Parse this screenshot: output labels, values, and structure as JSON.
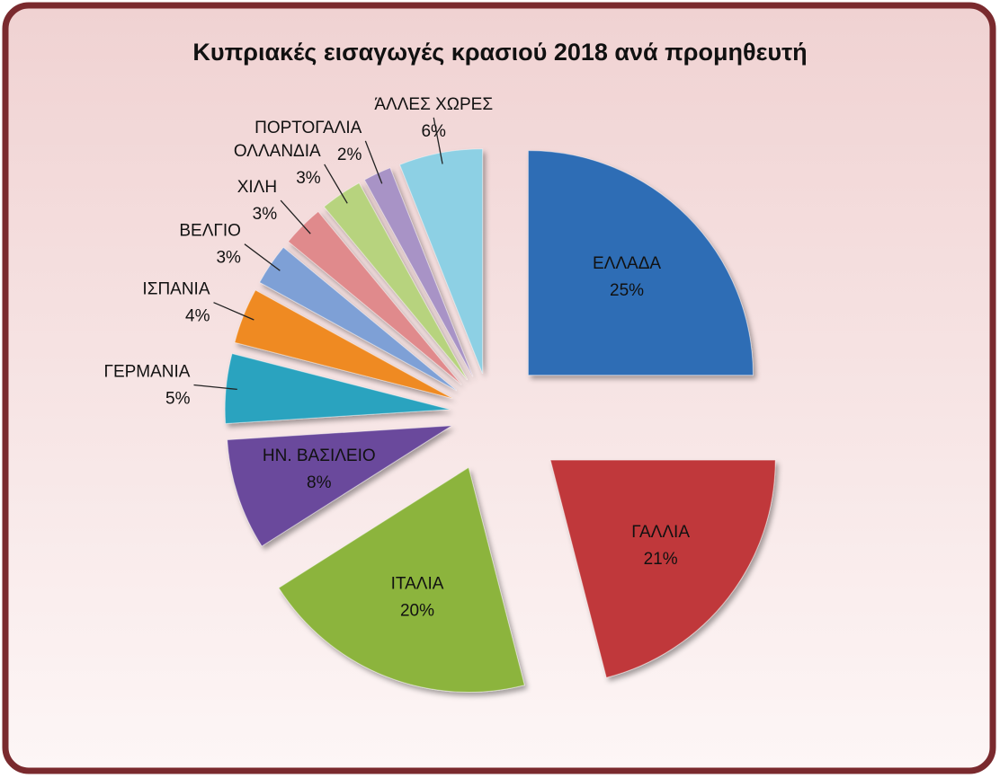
{
  "chart_data": {
    "type": "pie",
    "title": "Κυπριακές εισαγωγές κρασιού 2018 ανά προμηθευτή",
    "categories": [
      "ΕΛΛΑΔΑ",
      "ΓΑΛΛΙΑ",
      "ΙΤΑΛΙΑ",
      "ΗΝ. ΒΑΣΙΛΕΙΟ",
      "ΓΕΡΜΑΝΙΑ",
      "ΙΣΠΑΝΙΑ",
      "ΒΕΛΓΙΟ",
      "ΧΙΛΗ",
      "ΟΛΛΑΝΔΙΑ",
      "ΠΟΡΤΟΓΑΛΙΑ",
      "ΆΛΛΕΣ ΧΩΡΕΣ"
    ],
    "values": [
      25,
      21,
      20,
      8,
      5,
      4,
      3,
      3,
      3,
      2,
      6
    ],
    "value_labels": [
      "25%",
      "21%",
      "20%",
      "8%",
      "5%",
      "4%",
      "3%",
      "3%",
      "3%",
      "2%",
      "6%"
    ],
    "colors": [
      "#2f6db5",
      "#c0393a",
      "#8cb43e",
      "#6a4a9c",
      "#2aa3bf",
      "#ef8a22",
      "#7ea0d6",
      "#e08a8c",
      "#b7d37e",
      "#a893c6",
      "#8dd0e4"
    ]
  }
}
